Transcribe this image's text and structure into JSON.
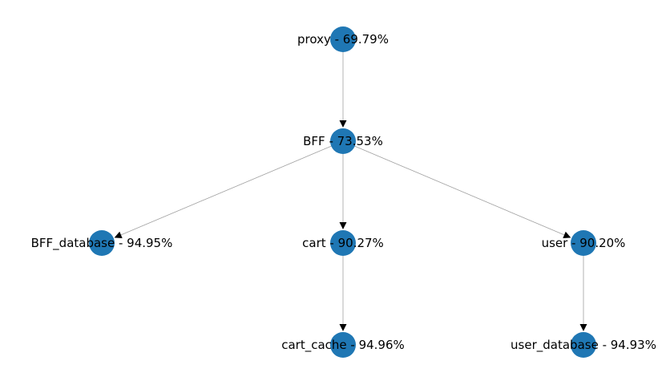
{
  "colors": {
    "node_fill": "#1f77b4",
    "edge_stroke": "#a0a0a0",
    "arrow_fill": "#000000",
    "label_text": "#000000"
  },
  "nodes": [
    {
      "id": "proxy",
      "label": "proxy - 69.79%"
    },
    {
      "id": "BFF",
      "label": "BFF - 73.53%"
    },
    {
      "id": "BFF_database",
      "label": "BFF_database - 94.95%"
    },
    {
      "id": "cart",
      "label": "cart - 90.27%"
    },
    {
      "id": "user",
      "label": "user - 90.20%"
    },
    {
      "id": "cart_cache",
      "label": "cart_cache - 94.96%"
    },
    {
      "id": "user_database",
      "label": "user_database - 94.93%"
    }
  ],
  "edges": [
    {
      "from": "proxy",
      "to": "BFF"
    },
    {
      "from": "BFF",
      "to": "BFF_database"
    },
    {
      "from": "BFF",
      "to": "cart"
    },
    {
      "from": "BFF",
      "to": "user"
    },
    {
      "from": "cart",
      "to": "cart_cache"
    },
    {
      "from": "user",
      "to": "user_database"
    }
  ]
}
